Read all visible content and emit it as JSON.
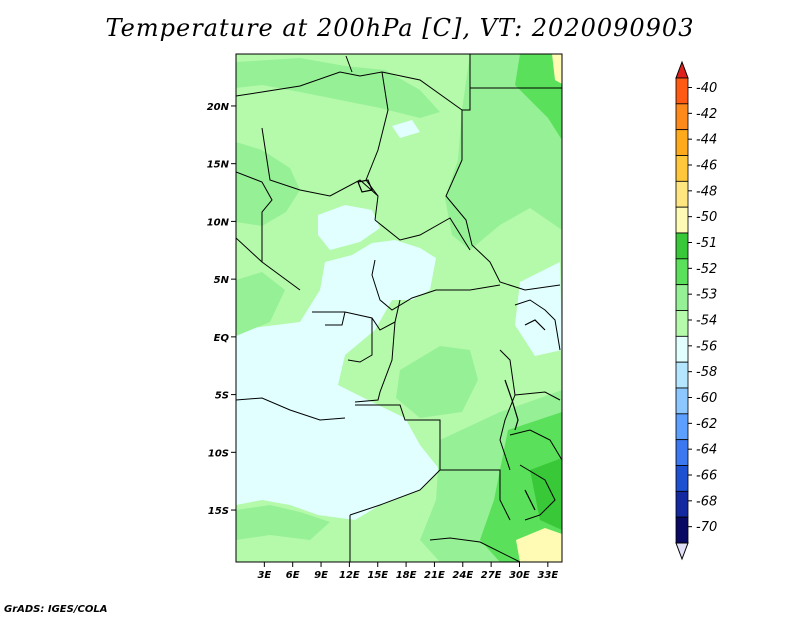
{
  "title": "Temperature at 200hPa [C], VT: 2020090903",
  "credit": "GrADS: IGES/COLA",
  "map": {
    "lon_ticks": [
      "3E",
      "6E",
      "9E",
      "12E",
      "15E",
      "18E",
      "21E",
      "24E",
      "27E",
      "30E",
      "33E"
    ],
    "lat_ticks": [
      "20N",
      "15N",
      "10N",
      "5N",
      "EQ",
      "5S",
      "10S",
      "15S"
    ],
    "lon_range": [
      0,
      34.5
    ],
    "lat_range": [
      -19.5,
      24.5
    ]
  },
  "colorbar": {
    "labels": [
      "-40",
      "-42",
      "-44",
      "-46",
      "-48",
      "-50",
      "-51",
      "-52",
      "-53",
      "-54",
      "-56",
      "-58",
      "-60",
      "-62",
      "-64",
      "-66",
      "-68",
      "-70"
    ],
    "colors": [
      "#e0201c",
      "#ff5a14",
      "#ff8a1c",
      "#ffaa1c",
      "#ffc83c",
      "#ffe680",
      "#fffab4",
      "#38c838",
      "#5ae05a",
      "#96f096",
      "#b4faaa",
      "#e1ffff",
      "#b4e6ff",
      "#8cc8ff",
      "#5ca0ff",
      "#3c78f0",
      "#1e50d2",
      "#1428a0",
      "#0a0a64",
      "#e0e0f8"
    ]
  },
  "colors": {
    "light_cyan": "#e1ffff",
    "pale_green": "#b4faaa",
    "light_green": "#96f096",
    "green": "#5ae05a",
    "dark_green": "#38c838",
    "yellow": "#fffab4"
  }
}
